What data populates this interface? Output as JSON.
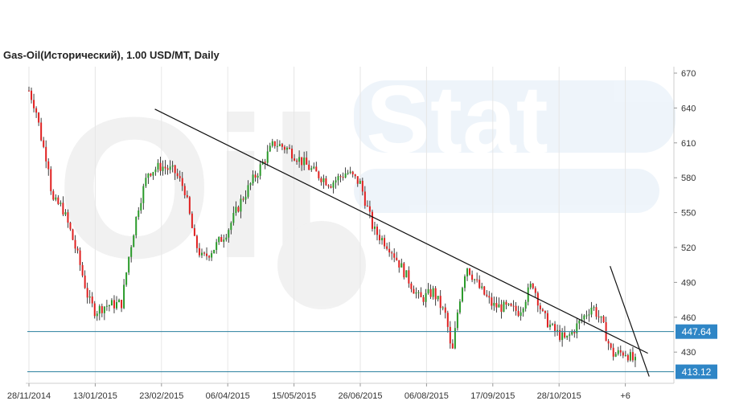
{
  "chart_data": {
    "type": "candlestick",
    "title": "Gas-Oil(Исторический), 1.00 USD/MT, Daily",
    "y_ticks": [
      670,
      640,
      610,
      580,
      550,
      520,
      490,
      460,
      430
    ],
    "ylim": [
      406,
      670
    ],
    "x_ticks": [
      "28/11/2014",
      "13/01/2015",
      "23/02/2015",
      "06/04/2015",
      "15/05/2015",
      "26/06/2015",
      "06/08/2015",
      "17/09/2015",
      "28/10/2015",
      "+6"
    ],
    "horizontal_levels": [
      {
        "value": 447.64,
        "label": "447.64"
      },
      {
        "value": 413.12,
        "label": "413.12"
      }
    ],
    "trendlines": [
      {
        "from": {
          "x_index": 1.9,
          "y": 639
        },
        "to": {
          "x_index": 9.34,
          "y": 429
        }
      },
      {
        "from": {
          "x_index": 8.77,
          "y": 504
        },
        "to": {
          "x_index": 9.36,
          "y": 409
        }
      }
    ],
    "price_path": [
      {
        "x_index": 0.0,
        "y": 655
      },
      {
        "x_index": 0.1,
        "y": 640
      },
      {
        "x_index": 0.2,
        "y": 610
      },
      {
        "x_index": 0.3,
        "y": 590
      },
      {
        "x_index": 0.35,
        "y": 560
      },
      {
        "x_index": 0.5,
        "y": 555
      },
      {
        "x_index": 0.62,
        "y": 535
      },
      {
        "x_index": 0.75,
        "y": 510
      },
      {
        "x_index": 0.9,
        "y": 475
      },
      {
        "x_index": 1.0,
        "y": 465
      },
      {
        "x_index": 1.15,
        "y": 470
      },
      {
        "x_index": 1.4,
        "y": 472
      },
      {
        "x_index": 1.5,
        "y": 510
      },
      {
        "x_index": 1.65,
        "y": 555
      },
      {
        "x_index": 1.8,
        "y": 585
      },
      {
        "x_index": 2.0,
        "y": 590
      },
      {
        "x_index": 2.2,
        "y": 585
      },
      {
        "x_index": 2.35,
        "y": 570
      },
      {
        "x_index": 2.5,
        "y": 525
      },
      {
        "x_index": 2.62,
        "y": 510
      },
      {
        "x_index": 2.8,
        "y": 520
      },
      {
        "x_index": 3.0,
        "y": 535
      },
      {
        "x_index": 3.2,
        "y": 560
      },
      {
        "x_index": 3.45,
        "y": 585
      },
      {
        "x_index": 3.7,
        "y": 610
      },
      {
        "x_index": 3.9,
        "y": 605
      },
      {
        "x_index": 4.1,
        "y": 595
      },
      {
        "x_index": 4.3,
        "y": 585
      },
      {
        "x_index": 4.55,
        "y": 575
      },
      {
        "x_index": 4.8,
        "y": 585
      },
      {
        "x_index": 5.0,
        "y": 575
      },
      {
        "x_index": 5.2,
        "y": 535
      },
      {
        "x_index": 5.45,
        "y": 520
      },
      {
        "x_index": 5.7,
        "y": 495
      },
      {
        "x_index": 5.9,
        "y": 475
      },
      {
        "x_index": 6.1,
        "y": 482
      },
      {
        "x_index": 6.3,
        "y": 460
      },
      {
        "x_index": 6.38,
        "y": 425
      },
      {
        "x_index": 6.48,
        "y": 470
      },
      {
        "x_index": 6.6,
        "y": 505
      },
      {
        "x_index": 6.8,
        "y": 485
      },
      {
        "x_index": 7.0,
        "y": 470
      },
      {
        "x_index": 7.2,
        "y": 468
      },
      {
        "x_index": 7.4,
        "y": 465
      },
      {
        "x_index": 7.6,
        "y": 490
      },
      {
        "x_index": 7.75,
        "y": 462
      },
      {
        "x_index": 7.9,
        "y": 450
      },
      {
        "x_index": 8.1,
        "y": 440
      },
      {
        "x_index": 8.3,
        "y": 455
      },
      {
        "x_index": 8.5,
        "y": 470
      },
      {
        "x_index": 8.65,
        "y": 455
      },
      {
        "x_index": 8.8,
        "y": 428
      },
      {
        "x_index": 9.0,
        "y": 430
      },
      {
        "x_index": 9.15,
        "y": 421
      }
    ]
  }
}
